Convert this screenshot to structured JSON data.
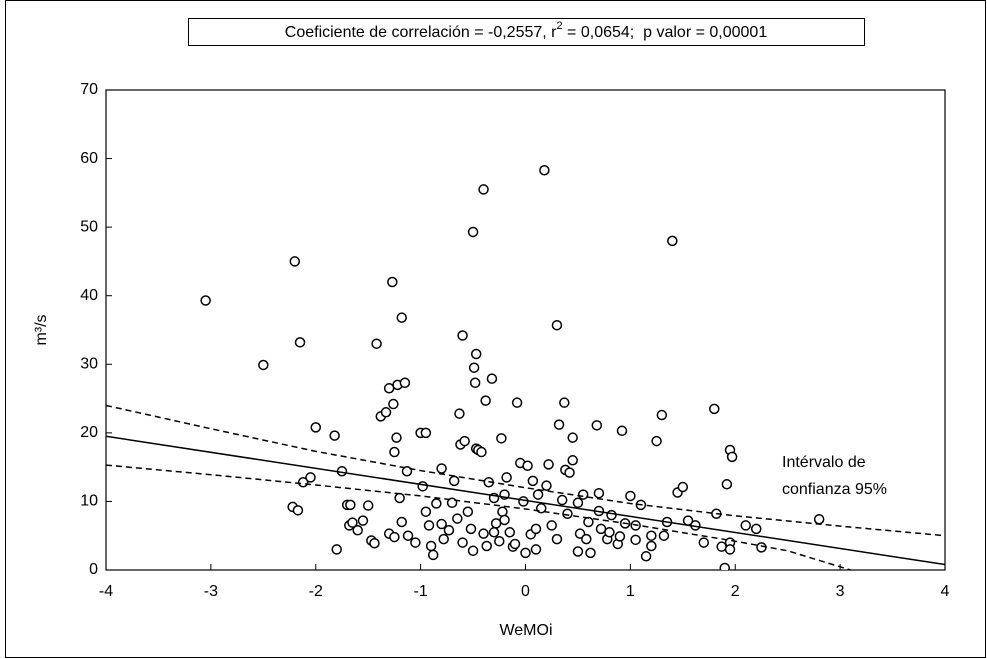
{
  "chart_data": {
    "type": "scatter",
    "title_parts": [
      "Coeficiente de correlación = -0,2557, r",
      "2",
      " = 0,0654;  p valor = 0,00001"
    ],
    "xlabel": "WeMOi",
    "ylabel": "m³/s",
    "annotation": [
      "Intérvalo de",
      "confianza 95%"
    ],
    "xlim": [
      -4,
      4
    ],
    "xticks": [
      -4,
      -3,
      -2,
      -1,
      0,
      1,
      2,
      3,
      4
    ],
    "ylim": [
      0,
      70
    ],
    "yticks": [
      0,
      10,
      20,
      30,
      40,
      50,
      60,
      70
    ],
    "marker_color": "#000000",
    "x": [
      -3.05,
      -2.5,
      -2.2,
      -2.15,
      -2.0,
      -2.22,
      -2.17,
      -2.12,
      -2.05,
      -1.82,
      -1.75,
      -1.8,
      -1.7,
      -1.67,
      -1.68,
      -1.65,
      -1.6,
      -1.55,
      -1.5,
      -1.47,
      -1.44,
      -1.42,
      -1.38,
      -1.33,
      -1.3,
      -1.27,
      -1.26,
      -1.25,
      -1.23,
      -1.22,
      -1.18,
      -1.15,
      -1.13,
      -1.2,
      -1.3,
      -1.25,
      -1.18,
      -1.12,
      -1.05,
      -1.0,
      -0.95,
      -0.98,
      -0.95,
      -0.92,
      -0.9,
      -0.88,
      -0.85,
      -0.8,
      -0.78,
      -0.73,
      -0.7,
      -0.68,
      -0.65,
      -0.63,
      -0.62,
      -0.6,
      -0.58,
      -0.55,
      -0.52,
      -0.5,
      -0.49,
      -0.47,
      -0.48,
      -0.47,
      -0.45,
      -0.42,
      -0.4,
      -0.38,
      -0.4,
      -0.37,
      -0.35,
      -0.32,
      -0.3,
      -0.28,
      -0.25,
      -0.23,
      -0.22,
      -0.2,
      -0.18,
      -0.15,
      -0.12,
      -0.08,
      -0.05,
      -0.02,
      0,
      0.02,
      0.05,
      0.07,
      0.1,
      0.12,
      0.15,
      0.18,
      0.2,
      0.22,
      0.25,
      0.3,
      0.32,
      0.35,
      0.37,
      0.38,
      0.42,
      0.45,
      0.45,
      0.5,
      0.52,
      0.55,
      0.58,
      0.62,
      0.68,
      0.7,
      0.72,
      0.78,
      0.82,
      0.88,
      0.92,
      0.95,
      1.0,
      1.05,
      1.1,
      1.15,
      1.2,
      1.25,
      1.3,
      1.32,
      1.35,
      1.4,
      1.45,
      1.5,
      1.55,
      1.62,
      1.7,
      1.8,
      1.82,
      1.87,
      1.9,
      1.92,
      1.95,
      1.97,
      1.95,
      1.95,
      2.1,
      2.2,
      2.25,
      2.8,
      -0.6,
      -0.3,
      0.1,
      0.3,
      0.6,
      0.8,
      1.05,
      -0.8,
      -0.1,
      0.4,
      1.2,
      -0.5,
      0.7,
      0.9,
      -0.2,
      0.5
    ],
    "values": [
      39.3,
      29.9,
      45,
      33.2,
      20.8,
      9.2,
      8.7,
      12.8,
      13.5,
      19.6,
      14.4,
      3,
      9.5,
      9.5,
      6.5,
      6.9,
      5.8,
      7.2,
      9.4,
      4.3,
      3.9,
      33,
      22.4,
      23,
      26.5,
      42,
      24.2,
      17.2,
      19.3,
      27,
      36.8,
      27.3,
      14.4,
      10.5,
      5.3,
      4.8,
      7,
      5,
      4,
      20,
      20,
      12.2,
      8.5,
      6.5,
      3.5,
      2.2,
      9.7,
      14.8,
      4.5,
      5.8,
      9.8,
      13,
      7.5,
      22.8,
      18.3,
      34.2,
      18.8,
      8.5,
      6,
      49.3,
      29.5,
      31.5,
      27.3,
      17.7,
      17.5,
      17.2,
      55.5,
      24.7,
      5.3,
      3.5,
      12.8,
      27.9,
      10.5,
      6.8,
      4.2,
      19.2,
      8.5,
      11,
      13.5,
      5.5,
      3.4,
      24.4,
      15.6,
      10,
      2.5,
      15.2,
      5.2,
      13,
      3,
      11,
      9,
      58.3,
      12.3,
      15.4,
      6.5,
      35.7,
      21.2,
      10.2,
      24.4,
      14.6,
      14.2,
      19.3,
      16,
      9.8,
      5.3,
      11,
      4.5,
      2.5,
      21.1,
      11.2,
      6,
      4.5,
      8,
      3.8,
      20.3,
      6.8,
      10.8,
      4.4,
      9.5,
      2,
      5,
      18.8,
      22.6,
      5,
      7,
      48,
      11.3,
      12.1,
      7.2,
      6.5,
      4,
      23.5,
      8.2,
      3.4,
      0.3,
      12.5,
      17.5,
      16.5,
      4,
      3,
      6.5,
      6,
      3.3,
      7.4,
      4,
      5.5,
      6,
      4.5,
      7,
      5.5,
      6.5,
      6.7,
      3.8,
      8.2,
      3.5,
      2.8,
      8.6,
      4.9,
      7.3,
      2.7
    ],
    "fit_line": {
      "x": [
        -4,
        4
      ],
      "values": [
        19.5,
        0.8
      ]
    },
    "confidence_band": {
      "upper": {
        "x": [
          -4,
          -3,
          -2,
          -1,
          0,
          1,
          2,
          3,
          4
        ],
        "values": [
          24,
          20.6,
          17.3,
          14.5,
          12,
          9.7,
          7.9,
          6.4,
          5
        ]
      },
      "lower": {
        "x": [
          -4,
          -3,
          -2,
          -1,
          0,
          1,
          2,
          2.5,
          3.1
        ],
        "values": [
          15.3,
          13.9,
          12.4,
          10.8,
          8.9,
          6.7,
          4.2,
          2.8,
          0
        ]
      }
    }
  }
}
